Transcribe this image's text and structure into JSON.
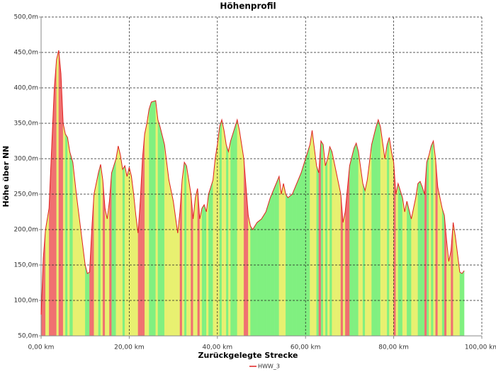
{
  "chart_data": {
    "type": "line",
    "title": "Höhenprofil",
    "x_label": "Zurückgelegte Strecke",
    "y_label": "Höhe über NN",
    "x": [
      0,
      0.5,
      1,
      1.8,
      2.5,
      3,
      3.5,
      4,
      4.5,
      5,
      5.5,
      6,
      6.5,
      7.2,
      8,
      9,
      10,
      10.5,
      11,
      11.5,
      12,
      12.5,
      13,
      13.5,
      14,
      14.5,
      15,
      15.5,
      16,
      17,
      17.5,
      18,
      18.5,
      19,
      19.5,
      20,
      20.5,
      21,
      21.5,
      22,
      22.5,
      23,
      23.5,
      24,
      24.5,
      25,
      26,
      26.5,
      27,
      28,
      29,
      30,
      31,
      31.5,
      32,
      32.5,
      33,
      34,
      34.5,
      35,
      35.5,
      36,
      36.5,
      37,
      37.5,
      38,
      38.5,
      39,
      39.5,
      40,
      40.5,
      41,
      41.5,
      42,
      42.5,
      43,
      44,
      44.5,
      45,
      46,
      46.5,
      47,
      47.5,
      48,
      49,
      50,
      51,
      52,
      53,
      54,
      54.5,
      55,
      55.5,
      56,
      57,
      58,
      59,
      60,
      61,
      61.5,
      62,
      62.5,
      63,
      63.5,
      64,
      64.5,
      65,
      65.5,
      66,
      67,
      68,
      68.5,
      69,
      70,
      71,
      71.5,
      72,
      73,
      73.5,
      74,
      75,
      76,
      76.5,
      77,
      78,
      78.5,
      79,
      79.5,
      80,
      80.5,
      81,
      82,
      82.5,
      83,
      84,
      85,
      85.5,
      86,
      86.5,
      87,
      87.5,
      88,
      88.5,
      89,
      89.5,
      90,
      91,
      91.5,
      92,
      92.5,
      93,
      93.5,
      94,
      95,
      95.5,
      96
    ],
    "series": [
      {
        "name": "HWW_3",
        "color": "#e02020",
        "values": [
          80,
          160,
          200,
          230,
          330,
          400,
          440,
          453,
          420,
          350,
          335,
          330,
          310,
          295,
          250,
          200,
          150,
          138,
          140,
          200,
          250,
          265,
          280,
          292,
          270,
          230,
          215,
          240,
          280,
          300,
          318,
          305,
          285,
          290,
          275,
          288,
          275,
          250,
          220,
          195,
          240,
          300,
          335,
          350,
          370,
          380,
          382,
          355,
          345,
          320,
          270,
          240,
          195,
          225,
          270,
          295,
          290,
          250,
          215,
          245,
          258,
          215,
          230,
          235,
          225,
          250,
          260,
          270,
          300,
          320,
          345,
          355,
          340,
          320,
          310,
          325,
          345,
          355,
          340,
          300,
          260,
          220,
          205,
          200,
          210,
          215,
          225,
          245,
          260,
          275,
          250,
          265,
          250,
          245,
          250,
          265,
          280,
          300,
          320,
          340,
          315,
          290,
          280,
          325,
          320,
          290,
          300,
          317,
          310,
          280,
          250,
          210,
          225,
          290,
          315,
          322,
          310,
          265,
          255,
          270,
          320,
          345,
          355,
          345,
          300,
          320,
          330,
          310,
          295,
          250,
          265,
          245,
          225,
          240,
          215,
          245,
          265,
          268,
          260,
          250,
          295,
          305,
          318,
          325,
          300,
          260,
          230,
          220,
          185,
          155,
          170,
          210,
          190,
          140,
          138,
          142
        ]
      }
    ],
    "xlim": [
      0,
      100
    ],
    "ylim": [
      50,
      500
    ],
    "xticks": [
      {
        "value": 0,
        "label": "0,00 km"
      },
      {
        "value": 20,
        "label": "20,00 km"
      },
      {
        "value": 40,
        "label": "40,00 km"
      },
      {
        "value": 60,
        "label": "60,00 km"
      },
      {
        "value": 80,
        "label": "80,00 km"
      },
      {
        "value": 100,
        "label": "100,00 km"
      }
    ],
    "yticks": [
      {
        "value": 50,
        "label": "50,0m"
      },
      {
        "value": 100,
        "label": "100,0m"
      },
      {
        "value": 150,
        "label": "150,0m"
      },
      {
        "value": 200,
        "label": "200,0m"
      },
      {
        "value": 250,
        "label": "250,0m"
      },
      {
        "value": 300,
        "label": "300,0m"
      },
      {
        "value": 350,
        "label": "350,0m"
      },
      {
        "value": 400,
        "label": "400,0m"
      },
      {
        "value": 450,
        "label": "450,0m"
      },
      {
        "value": 500,
        "label": "500,0m"
      }
    ],
    "grid": true
  }
}
